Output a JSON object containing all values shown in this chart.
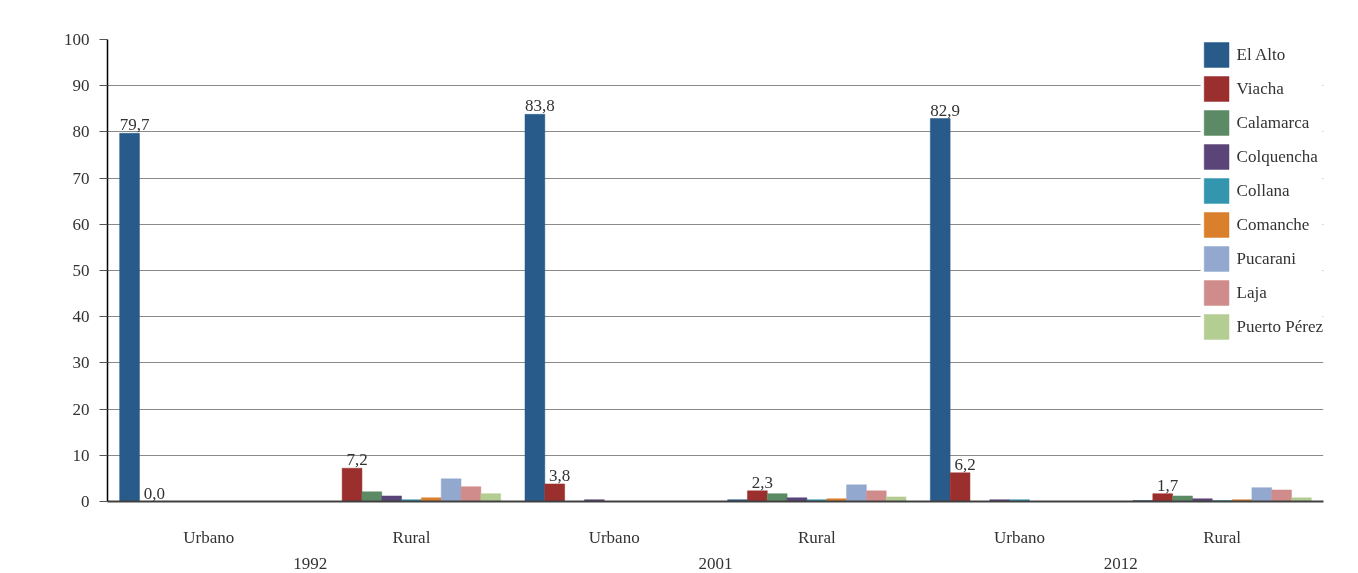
{
  "chart_data": {
    "type": "bar",
    "categories": [
      "Urbano",
      "Rural",
      "Urbano",
      "Rural",
      "Urbano",
      "Rural"
    ],
    "annotations": [
      "1992",
      "2001",
      "2012"
    ],
    "ylim": [
      0,
      100
    ],
    "yticks": [
      0,
      10,
      20,
      30,
      40,
      50,
      60,
      70,
      80,
      90,
      100
    ],
    "grid": "y",
    "legend": "top right",
    "series": [
      {
        "name": "El Alto",
        "color": "#285a8a",
        "values": [
          79.7,
          null,
          83.8,
          0.4,
          82.9,
          0.2
        ],
        "value_labels": [
          "79,7",
          null,
          "83,8",
          null,
          "82,9",
          null
        ]
      },
      {
        "name": "Viacha",
        "color": "#9a2f2e",
        "values": [
          0.0,
          7.2,
          3.8,
          2.3,
          6.2,
          1.7
        ],
        "value_labels": [
          "0,0",
          "7,2",
          "3,8",
          "2,3",
          "6,2",
          "1,7"
        ]
      },
      {
        "name": "Calamarca",
        "color": "#5b8a64",
        "values": [
          null,
          2.1,
          null,
          1.7,
          null,
          1.2
        ]
      },
      {
        "name": "Colquencha",
        "color": "#5a4478",
        "values": [
          null,
          1.2,
          0.4,
          0.8,
          0.4,
          0.6
        ]
      },
      {
        "name": "Collana",
        "color": "#3396ae",
        "values": [
          null,
          0.4,
          null,
          0.4,
          0.4,
          0.2
        ]
      },
      {
        "name": "Comanche",
        "color": "#da7f2c",
        "values": [
          null,
          0.8,
          null,
          0.6,
          null,
          0.4
        ]
      },
      {
        "name": "Pucarani",
        "color": "#92a8cf",
        "values": [
          null,
          4.9,
          null,
          3.6,
          null,
          3.0
        ]
      },
      {
        "name": "Laja",
        "color": "#d08c8b",
        "values": [
          null,
          3.2,
          null,
          2.3,
          null,
          2.5
        ]
      },
      {
        "name": "Puerto Pérez",
        "color": "#b4cd93",
        "values": [
          null,
          1.7,
          null,
          1.0,
          null,
          0.8
        ]
      }
    ]
  }
}
